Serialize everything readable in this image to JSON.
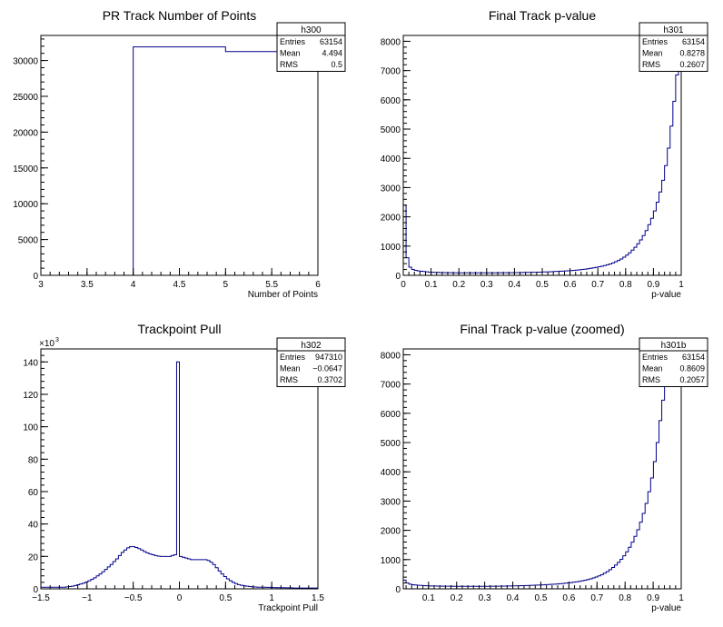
{
  "chart_data": [
    {
      "id": "h300",
      "type": "histogram",
      "title": "PR Track Number of Points",
      "xlabel": "Number of Points",
      "ylabel": "",
      "xlim": [
        3,
        6
      ],
      "ylim": [
        0,
        33500
      ],
      "xticks": [
        3,
        3.5,
        4,
        4.5,
        5,
        5.5,
        6
      ],
      "xtick_labels": [
        "3",
        "3.5",
        "4",
        "4.5",
        "5",
        "5.5",
        "6"
      ],
      "yticks": [
        0,
        5000,
        10000,
        15000,
        20000,
        25000,
        30000
      ],
      "ytick_labels": [
        "0",
        "5000",
        "10000",
        "15000",
        "20000",
        "25000",
        "30000"
      ],
      "yexp": "",
      "bins": [
        {
          "x0": 3,
          "x1": 4,
          "y": 0
        },
        {
          "x0": 4,
          "x1": 5,
          "y": 31900
        },
        {
          "x0": 5,
          "x1": 6,
          "y": 31250
        }
      ],
      "stats": {
        "name": "h300",
        "rows": [
          [
            "Entries",
            "63154"
          ],
          [
            "Mean",
            "4.494"
          ],
          [
            "RMS",
            "0.5"
          ]
        ]
      }
    },
    {
      "id": "h301",
      "type": "histogram",
      "title": "Final Track p-value",
      "xlabel": "p-value",
      "ylabel": "",
      "xlim": [
        0,
        1
      ],
      "ylim": [
        0,
        8200
      ],
      "xticks": [
        0,
        0.1,
        0.2,
        0.3,
        0.4,
        0.5,
        0.6,
        0.7,
        0.8,
        0.9,
        1
      ],
      "xtick_labels": [
        "0",
        "0.1",
        "0.2",
        "0.3",
        "0.4",
        "0.5",
        "0.6",
        "0.7",
        "0.8",
        "0.9",
        "1"
      ],
      "yticks": [
        0,
        1000,
        2000,
        3000,
        4000,
        5000,
        6000,
        7000,
        8000
      ],
      "ytick_labels": [
        "0",
        "1000",
        "2000",
        "3000",
        "4000",
        "5000",
        "6000",
        "7000",
        "8000"
      ],
      "yexp": "",
      "x0": 0,
      "bin_width": 0.01,
      "values": [
        2400,
        600,
        280,
        200,
        170,
        150,
        140,
        130,
        120,
        110,
        105,
        100,
        100,
        95,
        95,
        90,
        90,
        90,
        85,
        85,
        85,
        85,
        85,
        85,
        85,
        85,
        85,
        85,
        85,
        85,
        85,
        85,
        85,
        85,
        85,
        90,
        90,
        90,
        90,
        90,
        95,
        95,
        95,
        100,
        100,
        100,
        105,
        105,
        110,
        110,
        115,
        115,
        120,
        125,
        130,
        135,
        140,
        145,
        150,
        155,
        165,
        170,
        180,
        190,
        200,
        210,
        225,
        240,
        255,
        270,
        290,
        310,
        335,
        360,
        390,
        425,
        465,
        510,
        560,
        620,
        690,
        770,
        860,
        960,
        1080,
        1210,
        1360,
        1530,
        1730,
        1950,
        2200,
        2500,
        2850,
        3250,
        3750,
        4350,
        5100,
        5950,
        6850,
        7900
      ]
    },
    {
      "id": "h302",
      "type": "histogram",
      "title": "Trackpoint Pull",
      "xlabel": "Trackpoint Pull",
      "ylabel": "",
      "xlim": [
        -1.5,
        1.5
      ],
      "ylim": [
        0,
        148
      ],
      "xticks": [
        -1.5,
        -1,
        -0.5,
        0,
        0.5,
        1,
        1.5
      ],
      "xtick_labels": [
        "−1.5",
        "−1",
        "−0.5",
        "0",
        "0.5",
        "1",
        "1.5"
      ],
      "yticks": [
        0,
        20,
        40,
        60,
        80,
        100,
        120,
        140
      ],
      "ytick_labels": [
        "0",
        "20",
        "40",
        "60",
        "80",
        "100",
        "120",
        "140"
      ],
      "yexp": "×10",
      "yexp_power": "3",
      "x0": -1.5,
      "bin_width": 0.03,
      "values": [
        1,
        1,
        1,
        1,
        1,
        1,
        1,
        1,
        1,
        1.2,
        1.4,
        1.6,
        2,
        2.5,
        3,
        3.5,
        4.2,
        5,
        5.8,
        6.8,
        8,
        9.2,
        10.5,
        12,
        13.5,
        15,
        16.8,
        18.5,
        20.5,
        22.5,
        24,
        25.3,
        26,
        26,
        25.5,
        24.8,
        24,
        23,
        22.2,
        21.5,
        21,
        20.5,
        20.2,
        20,
        20,
        20,
        20,
        20.5,
        21,
        140,
        20,
        19.5,
        19,
        18.5,
        18,
        18,
        18,
        18,
        18,
        18,
        17.5,
        16.5,
        15,
        13,
        11,
        9.2,
        7.6,
        6.2,
        5,
        4,
        3.2,
        2.6,
        2.2,
        1.9,
        1.6,
        1.4,
        1.2,
        1.1,
        1,
        1,
        1,
        0.9,
        0.9,
        0.8,
        0.8,
        0.7,
        0.7,
        0.7,
        0.6,
        0.6,
        0.6,
        0.5,
        0.5,
        0.5,
        0.5,
        0.5,
        0.5,
        0.5,
        0.5,
        0.5
      ],
      "stats": {
        "name": "h302",
        "rows": [
          [
            "Entries",
            "947310"
          ],
          [
            "Mean",
            "−0.0647"
          ],
          [
            "RMS",
            "0.3702"
          ]
        ]
      }
    },
    {
      "id": "h301b",
      "type": "histogram",
      "title": "Final Track p-value (zoomed)",
      "xlabel": "p-value",
      "ylabel": "",
      "xlim": [
        0.01,
        1
      ],
      "ylim": [
        0,
        8200
      ],
      "xticks": [
        0.1,
        0.2,
        0.3,
        0.4,
        0.5,
        0.6,
        0.7,
        0.8,
        0.9,
        1
      ],
      "xtick_labels": [
        "0.1",
        "0.2",
        "0.3",
        "0.4",
        "0.5",
        "0.6",
        "0.7",
        "0.8",
        "0.9",
        "1"
      ],
      "yticks": [
        0,
        1000,
        2000,
        3000,
        4000,
        5000,
        6000,
        7000,
        8000
      ],
      "ytick_labels": [
        "0",
        "1000",
        "2000",
        "3000",
        "4000",
        "5000",
        "6000",
        "7000",
        "8000"
      ],
      "yexp": "",
      "x0": 0.01,
      "bin_width": 0.0099,
      "values": [
        300,
        200,
        160,
        140,
        130,
        120,
        115,
        110,
        105,
        100,
        98,
        96,
        94,
        92,
        90,
        90,
        88,
        88,
        86,
        86,
        85,
        85,
        85,
        85,
        85,
        85,
        85,
        85,
        86,
        86,
        87,
        88,
        88,
        90,
        90,
        92,
        94,
        96,
        98,
        100,
        102,
        105,
        108,
        110,
        113,
        116,
        120,
        124,
        128,
        132,
        137,
        142,
        148,
        154,
        160,
        168,
        176,
        184,
        194,
        204,
        215,
        228,
        242,
        258,
        275,
        295,
        318,
        343,
        372,
        405,
        442,
        485,
        535,
        592,
        656,
        728,
        810,
        903,
        1010,
        1130,
        1265,
        1420,
        1595,
        1795,
        2020,
        2280,
        2580,
        2920,
        3320,
        3790,
        4350,
        5000,
        5750,
        6450,
        7100,
        7700,
        8100,
        8100,
        8100,
        8100
      ]
    }
  ],
  "stats_h301": {
    "name": "h301",
    "rows": [
      [
        "Entries",
        "63154"
      ],
      [
        "Mean",
        "0.8278"
      ],
      [
        "RMS",
        "0.2607"
      ]
    ]
  },
  "stats_h301b": {
    "name": "h301b",
    "rows": [
      [
        "Entries",
        "63154"
      ],
      [
        "Mean",
        "0.8609"
      ],
      [
        "RMS",
        "0.2057"
      ]
    ]
  },
  "colors": {
    "line": "#00008b",
    "axis": "#000000",
    "background": "#ffffff"
  }
}
